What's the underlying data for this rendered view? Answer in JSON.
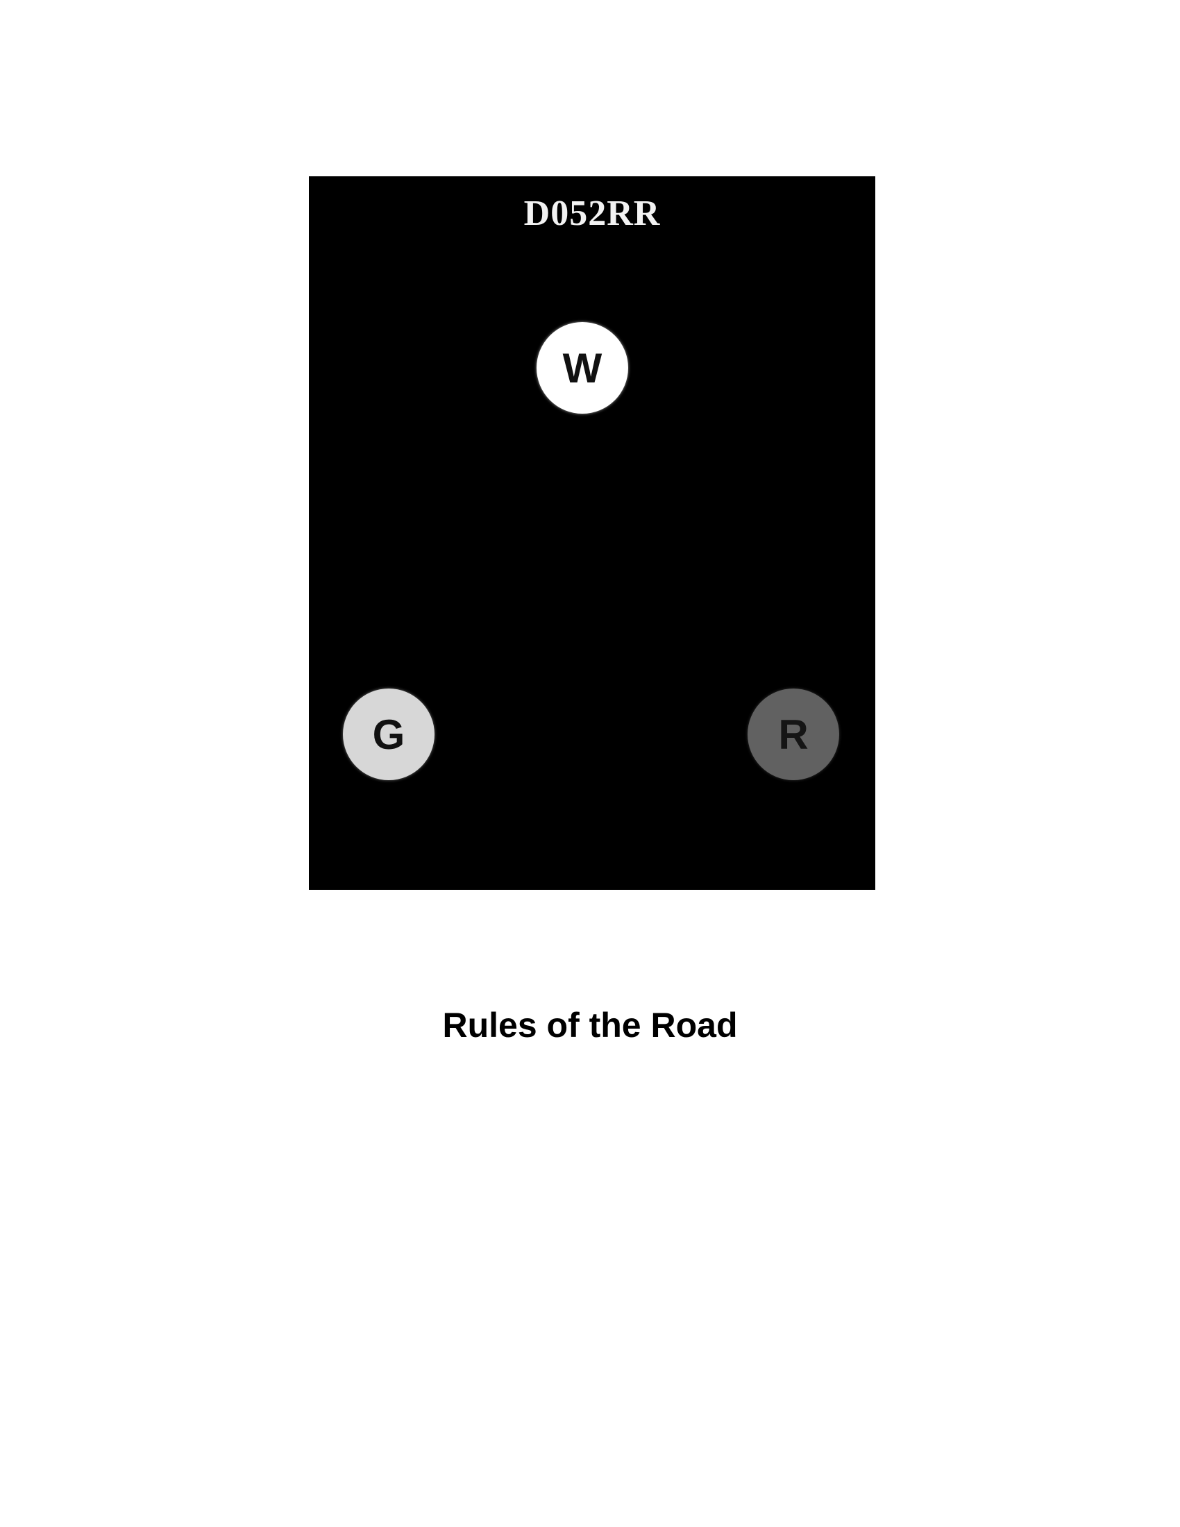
{
  "figure": {
    "title": "D052RR",
    "background_color": "#000000",
    "lights": {
      "white": {
        "letter": "W",
        "color": "#ffffff"
      },
      "green": {
        "letter": "G",
        "color": "#d7d7d7"
      },
      "red": {
        "letter": "R",
        "color": "#616161"
      }
    }
  },
  "caption": "Rules of the Road"
}
